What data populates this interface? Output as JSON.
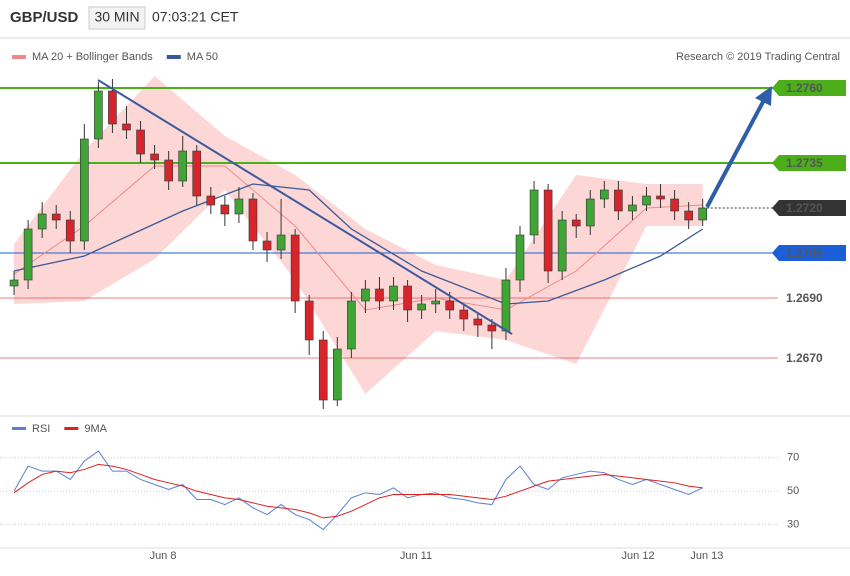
{
  "header": {
    "symbol": "GBP/USD",
    "interval": "30 MIN",
    "time": "07:03:21 CET",
    "credit": "Research © 2019 Trading Central"
  },
  "chart_data": [
    {
      "type": "candlestick",
      "up_color": "#3fa535",
      "down_color": "#d7262b",
      "open": [
        1.2694,
        1.2696,
        1.2713,
        1.2718,
        1.2716,
        1.2709,
        1.2743,
        1.2759,
        1.2748,
        1.2746,
        1.2738,
        1.2736,
        1.2729,
        1.2739,
        1.2724,
        1.2721,
        1.2718,
        1.2723,
        1.2709,
        1.2706,
        1.2711,
        1.2689,
        1.2676,
        1.2656,
        1.2673,
        1.2689,
        1.2693,
        1.2689,
        1.2694,
        1.2686,
        1.2688,
        1.2689,
        1.2686,
        1.2683,
        1.2681,
        1.2679,
        1.2696,
        1.2711,
        1.2726,
        1.2699,
        1.2716,
        1.2714,
        1.2723,
        1.2726,
        1.2719,
        1.2721,
        1.2724,
        1.2723,
        1.2719,
        1.2716
      ],
      "high": [
        1.2699,
        1.2716,
        1.2722,
        1.2721,
        1.2719,
        1.2748,
        1.2762,
        1.2763,
        1.2754,
        1.2749,
        1.2741,
        1.2739,
        1.2744,
        1.2741,
        1.2727,
        1.2724,
        1.2727,
        1.2725,
        1.2712,
        1.2723,
        1.2713,
        1.2691,
        1.2679,
        1.2677,
        1.2692,
        1.2696,
        1.2697,
        1.2697,
        1.2696,
        1.2691,
        1.2693,
        1.2692,
        1.2688,
        1.2685,
        1.2683,
        1.27,
        1.2714,
        1.2729,
        1.2728,
        1.2719,
        1.2718,
        1.2726,
        1.2729,
        1.2729,
        1.2724,
        1.2727,
        1.2728,
        1.2726,
        1.2722,
        1.2723
      ],
      "low": [
        1.2691,
        1.2693,
        1.271,
        1.2713,
        1.2705,
        1.2706,
        1.274,
        1.2745,
        1.2743,
        1.2735,
        1.2733,
        1.2726,
        1.2727,
        1.2721,
        1.2718,
        1.2714,
        1.2715,
        1.2706,
        1.2702,
        1.2703,
        1.2685,
        1.2671,
        1.2653,
        1.2654,
        1.267,
        1.2685,
        1.2686,
        1.2686,
        1.2682,
        1.2683,
        1.2685,
        1.2683,
        1.2679,
        1.2677,
        1.2673,
        1.2676,
        1.2692,
        1.2708,
        1.2695,
        1.2696,
        1.271,
        1.2711,
        1.272,
        1.2716,
        1.2716,
        1.2719,
        1.272,
        1.2716,
        1.2713,
        1.2714
      ],
      "close": [
        1.2696,
        1.2713,
        1.2718,
        1.2716,
        1.2709,
        1.2743,
        1.2759,
        1.2748,
        1.2746,
        1.2738,
        1.2736,
        1.2729,
        1.2739,
        1.2724,
        1.2721,
        1.2718,
        1.2723,
        1.2709,
        1.2706,
        1.2711,
        1.2689,
        1.2676,
        1.2656,
        1.2673,
        1.2689,
        1.2693,
        1.2689,
        1.2694,
        1.2686,
        1.2688,
        1.2689,
        1.2686,
        1.2683,
        1.2681,
        1.2679,
        1.2696,
        1.2711,
        1.2726,
        1.2699,
        1.2716,
        1.2714,
        1.2723,
        1.2726,
        1.2719,
        1.2721,
        1.2724,
        1.2723,
        1.2719,
        1.2716,
        1.272
      ],
      "series": [
        {
          "name": "MA 20 + Bollinger Bands",
          "color": "#f08a8a",
          "band_color": "#fdd6d6",
          "x": [
            0,
            5,
            10,
            15,
            20,
            25,
            30,
            35,
            40,
            45,
            49
          ],
          "values": [
            1.2698,
            1.2714,
            1.2734,
            1.2734,
            1.2714,
            1.2686,
            1.269,
            1.2686,
            1.2699,
            1.272,
            1.2721
          ],
          "upper": [
            1.2708,
            1.2739,
            1.2764,
            1.2744,
            1.2731,
            1.2713,
            1.2701,
            1.2696,
            1.2731,
            1.2728,
            1.2728
          ],
          "lower": [
            1.2688,
            1.2689,
            1.2703,
            1.2726,
            1.2696,
            1.2658,
            1.2679,
            1.2676,
            1.2668,
            1.2714,
            1.2714
          ]
        },
        {
          "name": "MA 50",
          "color": "#3b5998",
          "x": [
            0,
            5,
            12,
            17,
            21,
            24,
            29,
            35,
            38,
            42,
            46,
            49
          ],
          "values": [
            1.2699,
            1.2704,
            1.2719,
            1.2728,
            1.2726,
            1.2713,
            1.2699,
            1.2688,
            1.2689,
            1.2696,
            1.2704,
            1.2713
          ]
        }
      ],
      "levels": [
        {
          "value": 1.276,
          "label": "1.2760",
          "color": "#4caf1a",
          "boxed": true
        },
        {
          "value": 1.2735,
          "label": "1.2735",
          "color": "#4caf1a",
          "boxed": true
        },
        {
          "value": 1.272,
          "label": "1.2720",
          "color": "#333333",
          "boxed": true,
          "dashed": true
        },
        {
          "value": 1.2705,
          "label": "1.2705",
          "color": "#1a5fd6",
          "boxed": true
        },
        {
          "value": 1.269,
          "label": "1.2690",
          "color": "#e03030",
          "boxed": false
        },
        {
          "value": 1.267,
          "label": "1.2670",
          "color": "#e03030",
          "boxed": false
        }
      ],
      "xlim": [
        -1,
        54.5
      ],
      "ylim": [
        1.2651,
        1.2766
      ]
    },
    {
      "type": "line",
      "series": [
        {
          "name": "RSI",
          "color": "#5b7fd6",
          "values": [
            50,
            65,
            62,
            62,
            57,
            68,
            74,
            62,
            62,
            57,
            54,
            51,
            54,
            45,
            45,
            42,
            46,
            40,
            36,
            42,
            36,
            33,
            27,
            36,
            46,
            49,
            48,
            52,
            46,
            48,
            49,
            46,
            45,
            43,
            42,
            57,
            65,
            54,
            51,
            58,
            60,
            62,
            61,
            57,
            54,
            57,
            54,
            51,
            48,
            52
          ]
        },
        {
          "name": "9MA",
          "color": "#e02020",
          "values": [
            49,
            55,
            60,
            62,
            61,
            63,
            66,
            65,
            63,
            60,
            57,
            55,
            53,
            50,
            48,
            46,
            45,
            43,
            41,
            40,
            39,
            37,
            34,
            35,
            38,
            42,
            46,
            48,
            48,
            48,
            48,
            48,
            47,
            46,
            45,
            47,
            50,
            53,
            56,
            57,
            58,
            59,
            60,
            59,
            58,
            57,
            56,
            55,
            53,
            52
          ]
        }
      ],
      "xlim": [
        -1,
        54.5
      ],
      "ylim": [
        16,
        83
      ],
      "yticks": [
        30,
        50,
        70
      ],
      "grid": true,
      "xticks": [
        {
          "value": 10.6,
          "label": "Jun 8"
        },
        {
          "value": 28.6,
          "label": "Jun 11"
        },
        {
          "value": 44.4,
          "label": "Jun 12"
        },
        {
          "value": 49.3,
          "label": "Jun 13"
        }
      ]
    }
  ]
}
